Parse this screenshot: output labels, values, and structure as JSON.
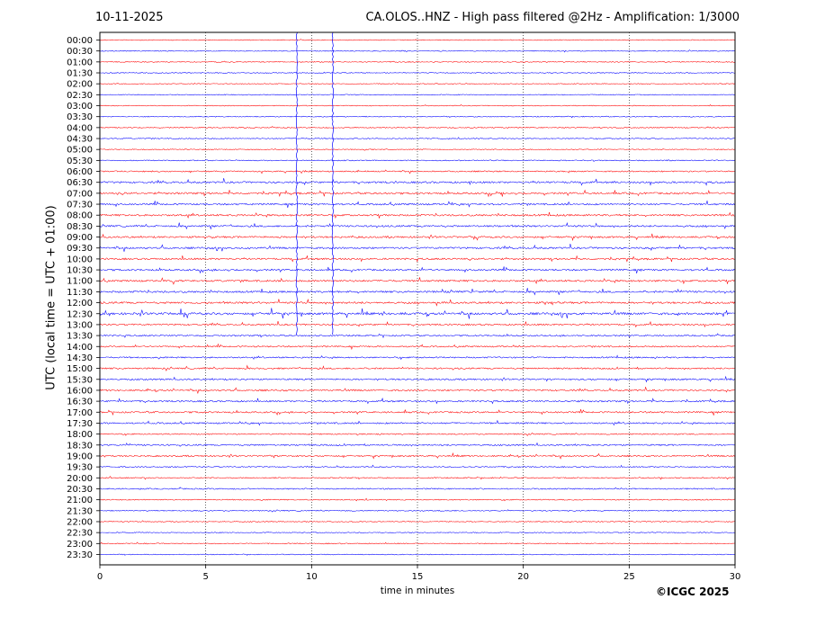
{
  "header": {
    "date": "10-11-2025",
    "title": "CA.OLOS..HNZ - High pass filtered @2Hz - Amplification: 1/3000"
  },
  "copyright": "©ICGC 2025",
  "chart_data": {
    "type": "line",
    "xlabel": "time in minutes",
    "ylabel": "UTC (local time = UTC + 01:00)",
    "xlim": [
      0,
      30
    ],
    "x_ticks": [
      0,
      5,
      10,
      15,
      20,
      25,
      30
    ],
    "vertical_gridlines": [
      5,
      10,
      15,
      20,
      25
    ],
    "grid": "vertical dotted",
    "row_labels": [
      "00:00",
      "00:30",
      "01:00",
      "01:30",
      "02:00",
      "02:30",
      "03:00",
      "03:30",
      "04:00",
      "04:30",
      "05:00",
      "05:30",
      "06:00",
      "06:30",
      "07:00",
      "07:30",
      "08:00",
      "08:30",
      "09:00",
      "09:30",
      "10:00",
      "10:30",
      "11:00",
      "11:30",
      "12:00",
      "12:30",
      "13:00",
      "13:30",
      "14:00",
      "14:30",
      "15:00",
      "15:30",
      "16:00",
      "16:30",
      "17:00",
      "17:30",
      "18:00",
      "18:30",
      "19:00",
      "19:30",
      "20:00",
      "20:30",
      "21:00",
      "21:30",
      "22:00",
      "22:30",
      "23:00",
      "23:30"
    ],
    "row_colors": [
      "#ff0000",
      "#0000ff"
    ],
    "activity_level": [
      0.1,
      0.15,
      0.15,
      0.1,
      0.1,
      0.1,
      0.1,
      0.15,
      0.2,
      0.15,
      0.15,
      0.2,
      0.35,
      0.6,
      0.6,
      0.55,
      0.6,
      0.55,
      0.55,
      0.6,
      0.55,
      0.55,
      0.6,
      0.6,
      0.65,
      0.8,
      0.5,
      0.4,
      0.4,
      0.4,
      0.45,
      0.45,
      0.5,
      0.5,
      0.5,
      0.45,
      0.3,
      0.45,
      0.45,
      0.25,
      0.25,
      0.3,
      0.2,
      0.2,
      0.15,
      0.1,
      0.15,
      0.1
    ],
    "large_spikes_minutes": [
      9.3,
      11.0
    ]
  }
}
